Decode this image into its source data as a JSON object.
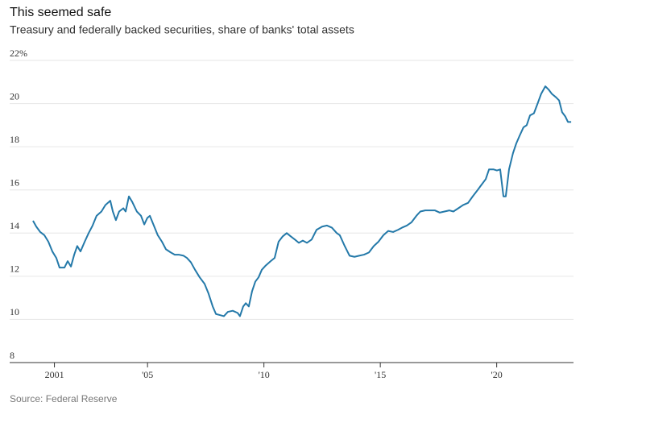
{
  "chart_data": {
    "type": "line",
    "title": "This seemed safe",
    "subtitle": "Treasury and federally backed securities, share of banks' total assets",
    "source": "Source: Federal Reserve",
    "grid": true,
    "xlim": [
      1999.7,
      2023.3
    ],
    "xticks": [
      2001,
      {
        "value": 2005,
        "label": "'05"
      },
      {
        "value": 2010,
        "label": "'10"
      },
      {
        "value": 2015,
        "label": "'15"
      },
      {
        "value": 2020,
        "label": "'20"
      }
    ],
    "ylim": [
      8,
      22
    ],
    "yticks": [
      8,
      10,
      12,
      14,
      16,
      18,
      20,
      {
        "value": 22,
        "label": "22%"
      }
    ],
    "x": [
      2000.08,
      2000.22,
      2000.39,
      2000.57,
      2000.74,
      2000.91,
      2001.08,
      2001.22,
      2001.43,
      2001.57,
      2001.71,
      2001.85,
      2001.98,
      2002.12,
      2002.3,
      2002.47,
      2002.64,
      2002.81,
      2003.02,
      2003.19,
      2003.4,
      2003.51,
      2003.64,
      2003.78,
      2003.96,
      2004.06,
      2004.2,
      2004.34,
      2004.54,
      2004.72,
      2004.86,
      2004.99,
      2005.1,
      2005.27,
      2005.44,
      2005.62,
      2005.79,
      2006.0,
      2006.17,
      2006.34,
      2006.55,
      2006.69,
      2006.86,
      2007.04,
      2007.24,
      2007.45,
      2007.62,
      2007.8,
      2007.94,
      2008.11,
      2008.28,
      2008.45,
      2008.66,
      2008.87,
      2008.97,
      2009.11,
      2009.22,
      2009.35,
      2009.49,
      2009.63,
      2009.77,
      2009.91,
      2010.08,
      2010.29,
      2010.46,
      2010.63,
      2010.81,
      2010.98,
      2011.15,
      2011.33,
      2011.5,
      2011.67,
      2011.85,
      2012.05,
      2012.26,
      2012.5,
      2012.71,
      2012.92,
      2013.13,
      2013.26,
      2013.47,
      2013.68,
      2013.89,
      2014.09,
      2014.3,
      2014.51,
      2014.72,
      2014.92,
      2015.13,
      2015.34,
      2015.55,
      2015.76,
      2015.93,
      2016.14,
      2016.34,
      2016.55,
      2016.72,
      2016.93,
      2017.14,
      2017.35,
      2017.55,
      2017.76,
      2017.97,
      2018.14,
      2018.35,
      2018.56,
      2018.77,
      2018.97,
      2019.15,
      2019.32,
      2019.53,
      2019.67,
      2019.87,
      2020.01,
      2020.15,
      2020.29,
      2020.39,
      2020.53,
      2020.7,
      2020.84,
      2020.98,
      2021.15,
      2021.29,
      2021.43,
      2021.6,
      2021.74,
      2021.91,
      2022.09,
      2022.23,
      2022.37,
      2022.54,
      2022.68,
      2022.81,
      2022.95,
      2023.06,
      2023.2
    ],
    "series": [
      {
        "name": "Share of banks' total assets",
        "color": "#2479a9",
        "values": [
          14.57,
          14.3,
          14.05,
          13.9,
          13.6,
          13.15,
          12.85,
          12.4,
          12.4,
          12.7,
          12.45,
          13.0,
          13.4,
          13.15,
          13.6,
          14.0,
          14.35,
          14.8,
          15.0,
          15.3,
          15.5,
          15.0,
          14.6,
          15.0,
          15.15,
          15.0,
          15.7,
          15.45,
          15.0,
          14.8,
          14.4,
          14.7,
          14.8,
          14.35,
          13.9,
          13.6,
          13.25,
          13.1,
          13.0,
          13.0,
          12.95,
          12.85,
          12.65,
          12.3,
          11.95,
          11.65,
          11.2,
          10.6,
          10.25,
          10.2,
          10.15,
          10.35,
          10.4,
          10.3,
          10.15,
          10.6,
          10.75,
          10.6,
          11.3,
          11.75,
          11.95,
          12.3,
          12.5,
          12.7,
          12.85,
          13.6,
          13.85,
          14.0,
          13.85,
          13.7,
          13.55,
          13.65,
          13.55,
          13.7,
          14.15,
          14.3,
          14.35,
          14.25,
          14.0,
          13.9,
          13.4,
          12.95,
          12.9,
          12.95,
          13.0,
          13.1,
          13.4,
          13.6,
          13.9,
          14.1,
          14.05,
          14.15,
          14.25,
          14.35,
          14.5,
          14.8,
          15.0,
          15.05,
          15.05,
          15.05,
          14.95,
          15.0,
          15.05,
          15.0,
          15.15,
          15.3,
          15.4,
          15.7,
          15.95,
          16.2,
          16.5,
          16.95,
          16.95,
          16.9,
          16.95,
          15.7,
          15.7,
          16.95,
          17.7,
          18.15,
          18.5,
          18.9,
          19.0,
          19.45,
          19.55,
          19.95,
          20.45,
          20.8,
          20.65,
          20.45,
          20.3,
          20.15,
          19.6,
          19.4,
          19.15,
          19.15
        ]
      }
    ]
  }
}
